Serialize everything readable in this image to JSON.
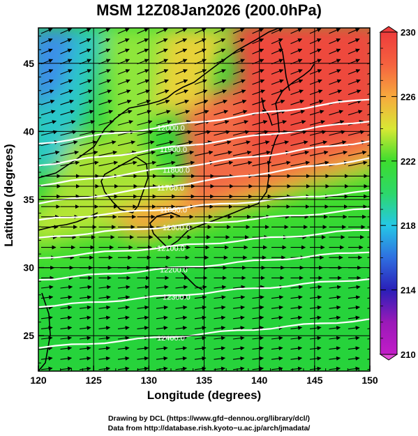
{
  "title": "MSM 12Z08Jan2026 (200.0hPa)",
  "axes": {
    "xlabel": "Longitude (degrees)",
    "ylabel": "Latitude  (degrees)",
    "xticks": [
      120,
      125,
      130,
      135,
      140,
      145,
      150
    ],
    "yticks": [
      25,
      30,
      35,
      40,
      45
    ],
    "xlim": [
      120,
      150
    ],
    "ylim": [
      22.4,
      47.6
    ]
  },
  "colorbar": {
    "min": 210,
    "max": 230,
    "tick_labels": [
      "230",
      "226",
      "222",
      "218",
      "214",
      "210"
    ],
    "tick_values": [
      230,
      226,
      222,
      218,
      214,
      210
    ]
  },
  "contours": [
    {
      "label": "12000.0",
      "lat": 39.6
    },
    {
      "label": "11900.0",
      "lat": 38.0
    },
    {
      "label": "11800.0",
      "lat": 36.5
    },
    {
      "label": "11700.0",
      "lat": 35.2
    },
    {
      "label": "11800.0",
      "lat": 34.0
    },
    {
      "label": "12000.0",
      "lat": 32.7
    },
    {
      "label": "12100.0",
      "lat": 31.2
    },
    {
      "label": "12200.0",
      "lat": 29.6
    },
    {
      "label": "12300.0",
      "lat": 27.6
    },
    {
      "label": "12400.0",
      "lat": 24.6
    }
  ],
  "credits": {
    "line1": "Drawing by DCL (https://www.gfd−dennou.org/library/dcl/)",
    "line2": "Data from http://database.rish.kyoto−u.ac.jp/arch/jmadata/"
  }
}
